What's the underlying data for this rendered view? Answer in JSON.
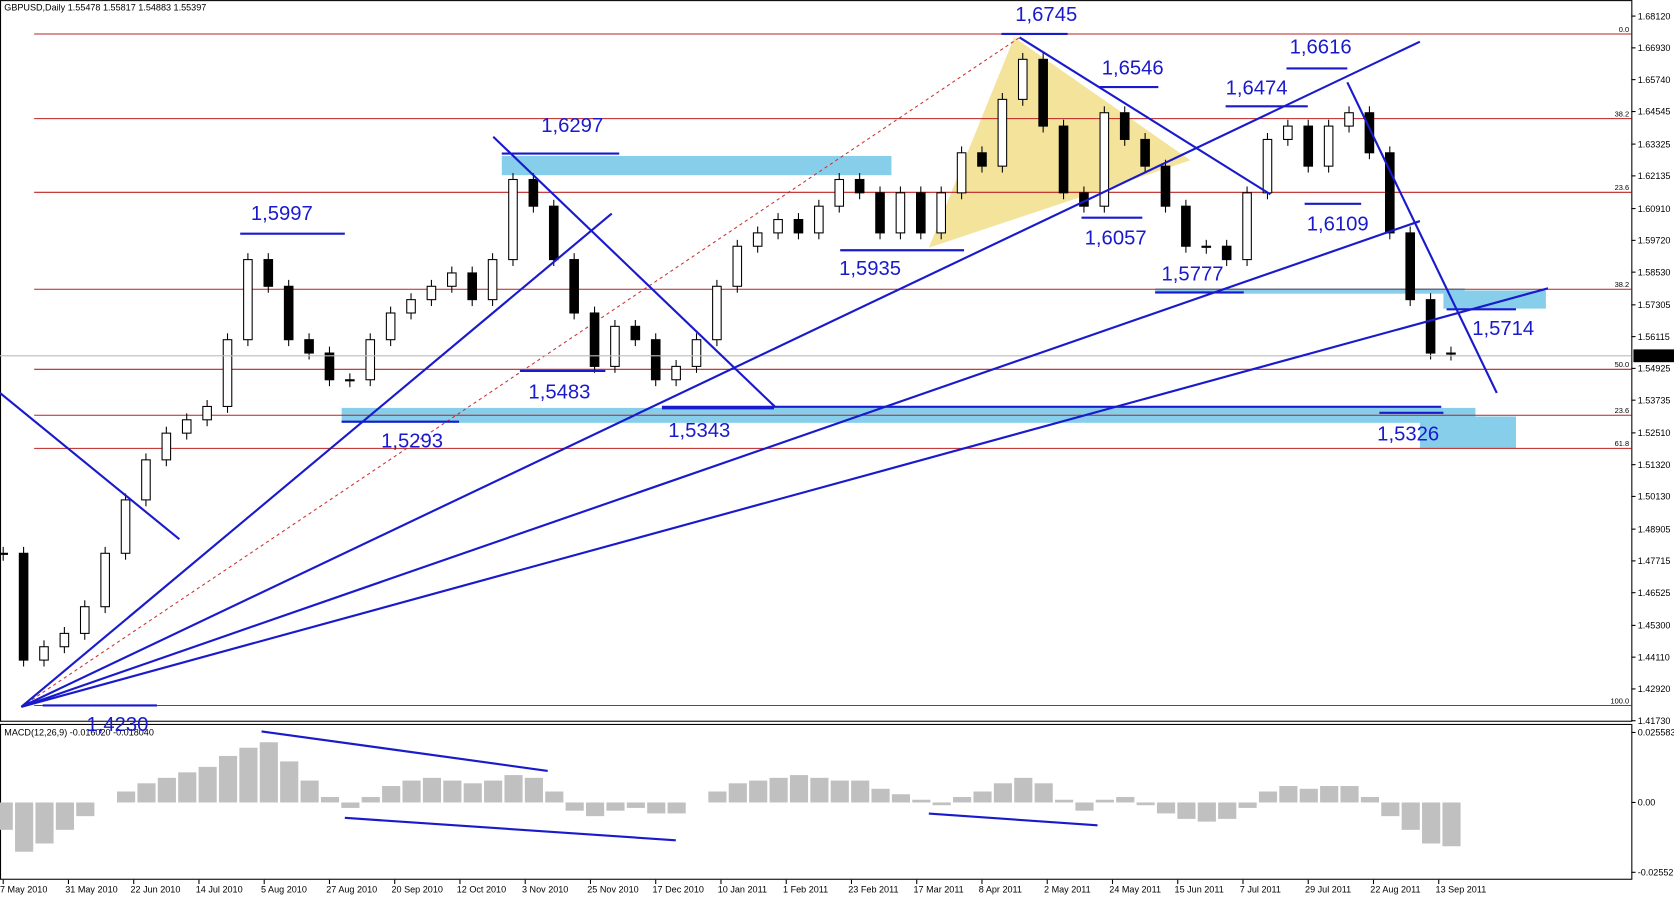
{
  "chart_data": {
    "type": "candlestick",
    "title": "GBPUSD,Daily  1.55478 1.55817 1.54883 1.55397",
    "x": [
      0,
      5,
      10,
      15,
      20,
      25,
      30,
      35,
      40,
      45,
      50,
      55,
      60,
      65,
      70,
      75,
      80,
      85,
      90,
      95,
      100,
      105,
      110,
      115,
      120,
      125,
      130,
      135,
      140,
      145,
      150,
      155,
      160,
      165,
      170,
      175,
      180,
      185,
      190,
      195,
      200,
      205,
      210,
      215,
      220,
      225,
      230,
      235,
      240,
      245,
      250,
      255,
      260,
      265,
      270,
      275,
      280,
      285,
      290,
      295,
      300,
      305,
      310,
      315,
      320,
      325,
      330,
      335,
      340,
      345,
      350,
      355
    ],
    "values": [
      1.48,
      1.44,
      1.445,
      1.45,
      1.46,
      1.48,
      1.5,
      1.515,
      1.525,
      1.53,
      1.535,
      1.56,
      1.59,
      1.58,
      1.56,
      1.555,
      1.545,
      1.545,
      1.56,
      1.57,
      1.575,
      1.58,
      1.585,
      1.575,
      1.59,
      1.62,
      1.61,
      1.59,
      1.57,
      1.55,
      1.565,
      1.56,
      1.545,
      1.55,
      1.56,
      1.58,
      1.595,
      1.6,
      1.605,
      1.6,
      1.61,
      1.62,
      1.615,
      1.6,
      1.615,
      1.6,
      1.615,
      1.63,
      1.625,
      1.65,
      1.665,
      1.64,
      1.615,
      1.61,
      1.645,
      1.635,
      1.625,
      1.61,
      1.595,
      1.595,
      1.59,
      1.615,
      1.635,
      1.64,
      1.625,
      1.64,
      1.645,
      1.63,
      1.6,
      1.575,
      1.555,
      1.555
    ],
    "xlim": [
      -1,
      400
    ],
    "xticks": [
      {
        "value": 0,
        "label": "7 May 2010"
      },
      {
        "value": 16,
        "label": "31 May 2010"
      },
      {
        "value": 32,
        "label": "22 Jun 2010"
      },
      {
        "value": 48,
        "label": "14 Jul 2010"
      },
      {
        "value": 64,
        "label": "5 Aug 2010"
      },
      {
        "value": 80,
        "label": "27 Aug 2010"
      },
      {
        "value": 96,
        "label": "20 Sep 2010"
      },
      {
        "value": 112,
        "label": "12 Oct 2010"
      },
      {
        "value": 128,
        "label": "3 Nov 2010"
      },
      {
        "value": 144,
        "label": "25 Nov 2010"
      },
      {
        "value": 160,
        "label": "17 Dec 2010"
      },
      {
        "value": 176,
        "label": "10 Jan 2011"
      },
      {
        "value": 192,
        "label": "1 Feb 2011"
      },
      {
        "value": 208,
        "label": "23 Feb 2011"
      },
      {
        "value": 224,
        "label": "17 Mar 2011"
      },
      {
        "value": 240,
        "label": "8 Apr 2011"
      },
      {
        "value": 256,
        "label": "2 May 2011"
      },
      {
        "value": 272,
        "label": "24 May 2011"
      },
      {
        "value": 288,
        "label": "15 Jun 2011"
      },
      {
        "value": 304,
        "label": "7 Jul 2011"
      },
      {
        "value": 320,
        "label": "29 Jul 2011"
      },
      {
        "value": 336,
        "label": "22 Aug 2011"
      },
      {
        "value": 352,
        "label": "13 Sep 2011"
      }
    ],
    "ylim": [
      1.4173,
      1.6812
    ],
    "yticks": [
      {
        "value": 1.6812,
        "label": "1.68120"
      },
      {
        "value": 1.6693,
        "label": "1.66930"
      },
      {
        "value": 1.6574,
        "label": "1.65740"
      },
      {
        "value": 1.64545,
        "label": "1.64545"
      },
      {
        "value": 1.63325,
        "label": "1.63325"
      },
      {
        "value": 1.62135,
        "label": "1.62135"
      },
      {
        "value": 1.6091,
        "label": "1.60910"
      },
      {
        "value": 1.5972,
        "label": "1.59720"
      },
      {
        "value": 1.5853,
        "label": "1.58530"
      },
      {
        "value": 1.57305,
        "label": "1.57305"
      },
      {
        "value": 1.56115,
        "label": "1.56115"
      },
      {
        "value": 1.54925,
        "label": "1.54925"
      },
      {
        "value": 1.53735,
        "label": "1.53735"
      },
      {
        "value": 1.5251,
        "label": "1.52510"
      },
      {
        "value": 1.5132,
        "label": "1.51320"
      },
      {
        "value": 1.5013,
        "label": "1.50130"
      },
      {
        "value": 1.48905,
        "label": "1.48905"
      },
      {
        "value": 1.47715,
        "label": "1.47715"
      },
      {
        "value": 1.46525,
        "label": "1.46525"
      },
      {
        "value": 1.453,
        "label": "1.45300"
      },
      {
        "value": 1.4411,
        "label": "1.44110"
      },
      {
        "value": 1.4292,
        "label": "1.42920"
      },
      {
        "value": 1.4173,
        "label": "1.41730"
      }
    ],
    "last_price": {
      "value": 1.55397,
      "label": "1.55397"
    },
    "fib_levels": [
      {
        "value": 1.6745,
        "label": "0.0"
      },
      {
        "value": 1.6428,
        "label": "38.2"
      },
      {
        "value": 1.6152,
        "label": "23.6"
      },
      {
        "value": 1.5789,
        "label": "38.2"
      },
      {
        "value": 1.5489,
        "label": "50.0"
      },
      {
        "value": 1.5317,
        "label": "23.6"
      },
      {
        "value": 1.5193,
        "label": "61.8"
      },
      {
        "value": 1.423,
        "label": "100.0"
      }
    ],
    "annotations": [
      {
        "value": 1.6745,
        "label": "1,6745"
      },
      {
        "value": 1.6546,
        "label": "1,6546"
      },
      {
        "value": 1.6297,
        "label": "1,6297"
      },
      {
        "value": 1.6474,
        "label": "1,6474"
      },
      {
        "value": 1.6616,
        "label": "1,6616"
      },
      {
        "value": 1.5997,
        "label": "1,5997"
      },
      {
        "value": 1.6057,
        "label": "1,6057"
      },
      {
        "value": 1.6109,
        "label": "1,6109"
      },
      {
        "value": 1.5935,
        "label": "1,5935"
      },
      {
        "value": 1.5777,
        "label": "1,5777"
      },
      {
        "value": 1.5714,
        "label": "1,5714"
      },
      {
        "value": 1.5483,
        "label": "1,5483"
      },
      {
        "value": 1.5343,
        "label": "1,5343"
      },
      {
        "value": 1.5293,
        "label": "1,5293"
      },
      {
        "value": 1.5326,
        "label": "1,5326"
      },
      {
        "value": 1.423,
        "label": "1,4230"
      }
    ],
    "macd": {
      "title": "MACD(12,26,9) -0.016020 -0.018040",
      "values": [
        -0.01,
        -0.018,
        -0.015,
        -0.01,
        -0.005,
        0.0,
        0.004,
        0.007,
        0.009,
        0.011,
        0.013,
        0.017,
        0.02,
        0.022,
        0.015,
        0.008,
        0.002,
        -0.002,
        0.002,
        0.006,
        0.008,
        0.009,
        0.008,
        0.007,
        0.008,
        0.01,
        0.009,
        0.004,
        -0.003,
        -0.005,
        -0.003,
        -0.002,
        -0.004,
        -0.004,
        0.0,
        0.004,
        0.007,
        0.008,
        0.009,
        0.01,
        0.009,
        0.008,
        0.008,
        0.005,
        0.003,
        0.001,
        -0.001,
        0.002,
        0.004,
        0.007,
        0.009,
        0.007,
        0.001,
        -0.003,
        0.001,
        0.002,
        -0.001,
        -0.004,
        -0.006,
        -0.007,
        -0.006,
        -0.002,
        0.004,
        0.006,
        0.005,
        0.006,
        0.006,
        0.002,
        -0.005,
        -0.01,
        -0.015,
        -0.016
      ],
      "ylim": [
        -0.02552,
        0.025583
      ],
      "yticks": [
        0.025583,
        {
          "value": 0,
          "label": "0.00"
        },
        -0.02552
      ]
    }
  }
}
